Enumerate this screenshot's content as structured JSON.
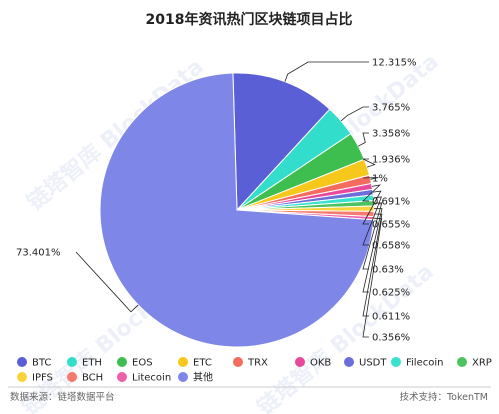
{
  "chart_data": {
    "type": "pie",
    "title": "2018年资讯热门区块链项目占比",
    "slices": [
      {
        "name": "BTC",
        "value": 12.315,
        "label": "12.315%",
        "color": "#5B5FD6"
      },
      {
        "name": "ETH",
        "value": 3.765,
        "label": "3.765%",
        "color": "#33DDCC"
      },
      {
        "name": "EOS",
        "value": 3.358,
        "label": "3.358%",
        "color": "#3DBE4F"
      },
      {
        "name": "ETC",
        "value": 1.936,
        "label": "1.936%",
        "color": "#F7C81C"
      },
      {
        "name": "TRX",
        "value": 1.0,
        "label": "1%",
        "color": "#F46C5E"
      },
      {
        "name": "OKB",
        "value": 0.691,
        "label": "0.691%",
        "color": "#E8499A"
      },
      {
        "name": "USDT",
        "value": 0.655,
        "label": "0.655%",
        "color": "#6C6FDA"
      },
      {
        "name": "Filecoin",
        "value": 0.658,
        "label": "0.658%",
        "color": "#37E2CF"
      },
      {
        "name": "XRP",
        "value": 0.63,
        "label": "0.63%",
        "color": "#4CC35E"
      },
      {
        "name": "IPFS",
        "value": 0.625,
        "label": "0.625%",
        "color": "#FAD23A"
      },
      {
        "name": "BCH",
        "value": 0.611,
        "label": "0.611%",
        "color": "#F47B6E"
      },
      {
        "name": "Litecoin",
        "value": 0.356,
        "label": "0.356%",
        "color": "#EE5FAA"
      },
      {
        "name": "其他",
        "value": 73.401,
        "label": "73.401%",
        "color": "#7E86E8"
      }
    ],
    "legend": {
      "placement": "bottom"
    }
  },
  "footer": {
    "source": "数据来源：链塔数据平台",
    "support": "技术支持：TokenTM"
  },
  "watermark": "链塔智库 BlockData"
}
